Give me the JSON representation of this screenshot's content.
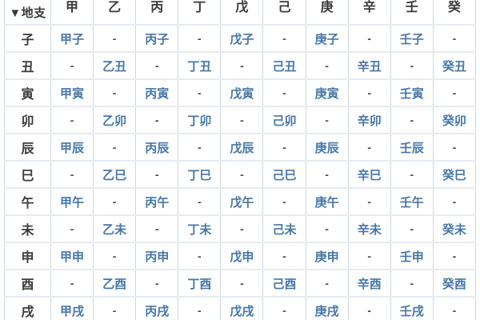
{
  "table": {
    "corner_label": "▼地支",
    "corner_icon": "triangle-down-icon",
    "stems": [
      "甲",
      "乙",
      "丙",
      "丁",
      "戊",
      "己",
      "庚",
      "辛",
      "壬",
      "癸"
    ],
    "rows": [
      {
        "branch": "子",
        "cells": [
          "甲子",
          "-",
          "丙子",
          "-",
          "戊子",
          "-",
          "庚子",
          "-",
          "壬子",
          "-"
        ]
      },
      {
        "branch": "丑",
        "cells": [
          "-",
          "乙丑",
          "-",
          "丁丑",
          "-",
          "己丑",
          "-",
          "辛丑",
          "-",
          "癸丑"
        ]
      },
      {
        "branch": "寅",
        "cells": [
          "甲寅",
          "-",
          "丙寅",
          "-",
          "戊寅",
          "-",
          "庚寅",
          "-",
          "壬寅",
          "-"
        ]
      },
      {
        "branch": "卯",
        "cells": [
          "-",
          "乙卯",
          "-",
          "丁卯",
          "-",
          "己卯",
          "-",
          "辛卯",
          "-",
          "癸卯"
        ]
      },
      {
        "branch": "辰",
        "cells": [
          "甲辰",
          "-",
          "丙辰",
          "-",
          "戊辰",
          "-",
          "庚辰",
          "-",
          "壬辰",
          "-"
        ]
      },
      {
        "branch": "巳",
        "cells": [
          "-",
          "乙巳",
          "-",
          "丁巳",
          "-",
          "己巳",
          "-",
          "辛巳",
          "-",
          "癸巳"
        ]
      },
      {
        "branch": "午",
        "cells": [
          "甲午",
          "-",
          "丙午",
          "-",
          "戊午",
          "-",
          "庚午",
          "-",
          "壬午",
          "-"
        ]
      },
      {
        "branch": "未",
        "cells": [
          "-",
          "乙未",
          "-",
          "丁未",
          "-",
          "己未",
          "-",
          "辛未",
          "-",
          "癸未"
        ]
      },
      {
        "branch": "申",
        "cells": [
          "甲申",
          "-",
          "丙申",
          "-",
          "戊申",
          "-",
          "庚申",
          "-",
          "壬申",
          "-"
        ]
      },
      {
        "branch": "酉",
        "cells": [
          "-",
          "乙酉",
          "-",
          "丁酉",
          "-",
          "己酉",
          "-",
          "辛酉",
          "-",
          "癸酉"
        ]
      },
      {
        "branch": "戌",
        "cells": [
          "甲戌",
          "-",
          "丙戌",
          "-",
          "戊戌",
          "-",
          "庚戌",
          "-",
          "壬戌",
          "-"
        ]
      }
    ],
    "colors": {
      "combo_text": "#4577a7",
      "dash_text": "#424a54",
      "branch_text": "#3b3b3d",
      "header_text": "#39393b",
      "border_vertical": "#ccd8e6",
      "border_horizontal": "#e7ebf1"
    }
  }
}
